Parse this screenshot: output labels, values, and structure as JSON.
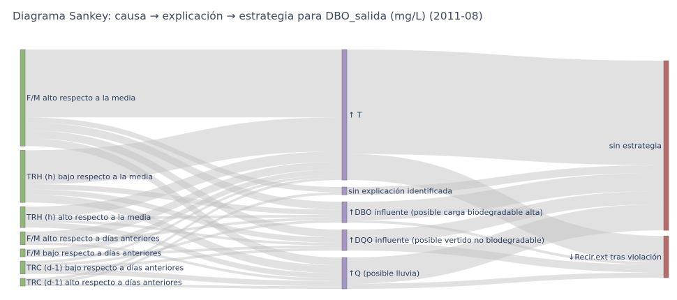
{
  "title": "Diagrama Sankey: causa → explicación → estrategia para DBO_salida (mg/L) (2011-08)",
  "colors": {
    "cause": "#8fb878",
    "explanation": "#a696c8",
    "strategy": "#b86a66",
    "link": "#c4c4c4"
  },
  "chart_data": {
    "type": "sankey",
    "title": "Diagrama Sankey: causa → explicación → estrategia para DBO_salida (mg/L) (2011-08)",
    "nodes": [
      {
        "id": "c0",
        "label": "F/M alto respecto a la media",
        "column": 0,
        "value": 37
      },
      {
        "id": "c1",
        "label": "TRH (h) bajo respecto a la media",
        "column": 0,
        "value": 20
      },
      {
        "id": "c2",
        "label": "TRH (h) alto respecto a la media",
        "column": 0,
        "value": 8
      },
      {
        "id": "c3",
        "label": "F/M alto respecto a días anteriores",
        "column": 0,
        "value": 5
      },
      {
        "id": "c4",
        "label": "F/M bajo respecto a días anteriores",
        "column": 0,
        "value": 3
      },
      {
        "id": "c5",
        "label": "TRC (d-1) bajo respecto a días anteriores",
        "column": 0,
        "value": 5
      },
      {
        "id": "c6",
        "label": "TRC (d-1) alto respecto a días anteriores",
        "column": 0,
        "value": 3
      },
      {
        "id": "e0",
        "label": "↑ T",
        "column": 1,
        "value": 50
      },
      {
        "id": "e1",
        "label": "sin explicación identificada",
        "column": 1,
        "value": 3
      },
      {
        "id": "e2",
        "label": "↑DBO influente (posible carga biodegradable alta)",
        "column": 1,
        "value": 8
      },
      {
        "id": "e3",
        "label": "↑DQO influente (posible vertido no biodegradable)",
        "column": 1,
        "value": 8
      },
      {
        "id": "e4",
        "label": "↑Q (posible lluvia)",
        "column": 1,
        "value": 12
      },
      {
        "id": "s0",
        "label": "sin estrategia",
        "column": 2,
        "value": 65
      },
      {
        "id": "s1",
        "label": "↓Recir.ext tras violación",
        "column": 2,
        "value": 16
      }
    ],
    "links": [
      {
        "source": "c0",
        "target": "e0",
        "value": 26
      },
      {
        "source": "c0",
        "target": "e1",
        "value": 2
      },
      {
        "source": "c0",
        "target": "e2",
        "value": 3
      },
      {
        "source": "c0",
        "target": "e3",
        "value": 3
      },
      {
        "source": "c0",
        "target": "e4",
        "value": 3
      },
      {
        "source": "c1",
        "target": "e0",
        "value": 13
      },
      {
        "source": "c1",
        "target": "e2",
        "value": 2
      },
      {
        "source": "c1",
        "target": "e3",
        "value": 2
      },
      {
        "source": "c1",
        "target": "e4",
        "value": 3
      },
      {
        "source": "c2",
        "target": "e0",
        "value": 4
      },
      {
        "source": "c2",
        "target": "e2",
        "value": 1
      },
      {
        "source": "c2",
        "target": "e3",
        "value": 1
      },
      {
        "source": "c2",
        "target": "e4",
        "value": 2
      },
      {
        "source": "c3",
        "target": "e0",
        "value": 3
      },
      {
        "source": "c3",
        "target": "e2",
        "value": 1
      },
      {
        "source": "c3",
        "target": "e4",
        "value": 1
      },
      {
        "source": "c4",
        "target": "e0",
        "value": 2
      },
      {
        "source": "c4",
        "target": "e3",
        "value": 1
      },
      {
        "source": "c5",
        "target": "e0",
        "value": 1
      },
      {
        "source": "c5",
        "target": "e2",
        "value": 1
      },
      {
        "source": "c5",
        "target": "e3",
        "value": 1
      },
      {
        "source": "c5",
        "target": "e4",
        "value": 2
      },
      {
        "source": "c6",
        "target": "e0",
        "value": 1
      },
      {
        "source": "c6",
        "target": "e1",
        "value": 1
      },
      {
        "source": "c6",
        "target": "e4",
        "value": 1
      },
      {
        "source": "e0",
        "target": "s0",
        "value": 40
      },
      {
        "source": "e0",
        "target": "s1",
        "value": 10
      },
      {
        "source": "e1",
        "target": "s0",
        "value": 3
      },
      {
        "source": "e2",
        "target": "s0",
        "value": 7
      },
      {
        "source": "e2",
        "target": "s1",
        "value": 1
      },
      {
        "source": "e3",
        "target": "s0",
        "value": 5
      },
      {
        "source": "e3",
        "target": "s1",
        "value": 3
      },
      {
        "source": "e4",
        "target": "s0",
        "value": 10
      },
      {
        "source": "e4",
        "target": "s1",
        "value": 2
      }
    ]
  }
}
